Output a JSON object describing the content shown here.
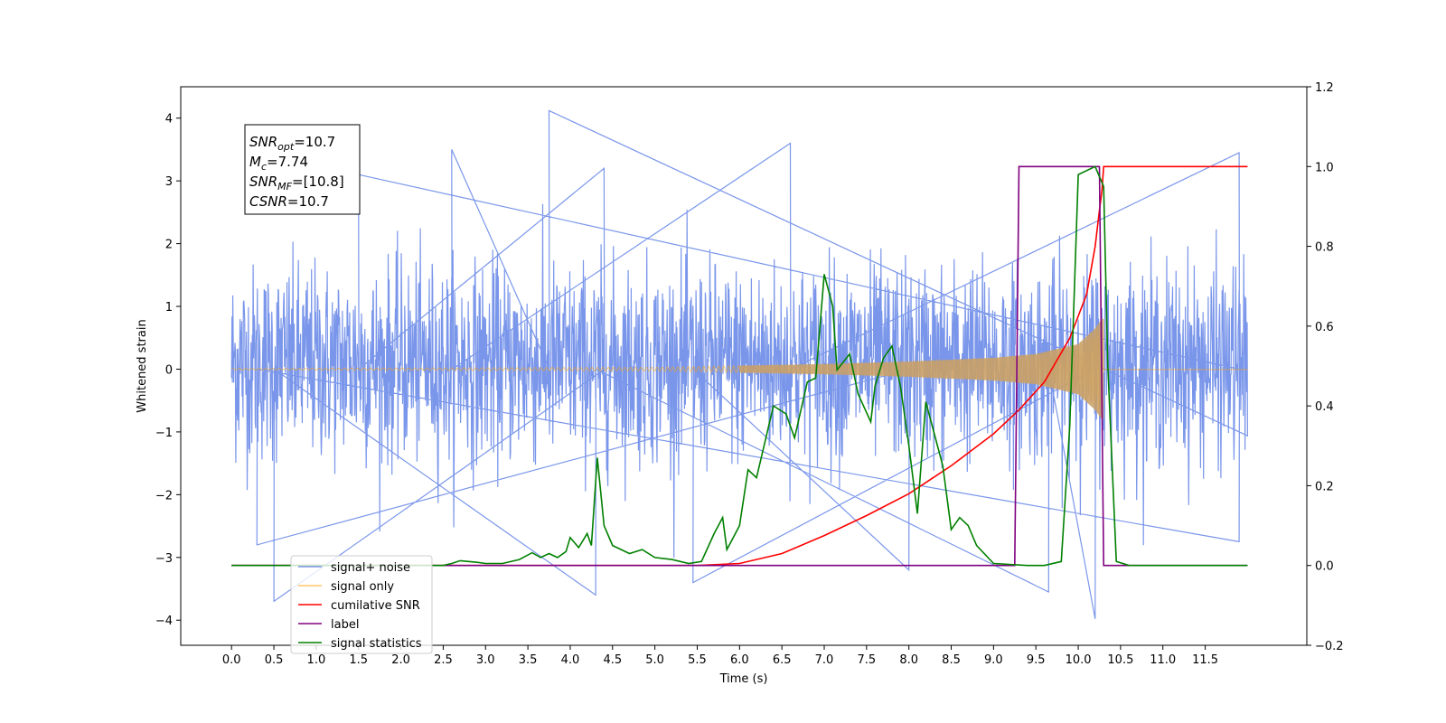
{
  "chart_data": {
    "type": "line",
    "xlabel": "Time (s)",
    "ylabel": "Whitened strain",
    "xlim": [
      -0.6,
      12.7
    ],
    "ylim": [
      -4.4,
      4.5
    ],
    "ylim_right": [
      -0.2,
      1.2
    ],
    "x_ticks": [
      0.0,
      0.5,
      1.0,
      1.5,
      2.0,
      2.5,
      3.0,
      3.5,
      4.0,
      4.5,
      5.0,
      5.5,
      6.0,
      6.5,
      7.0,
      7.5,
      8.0,
      8.5,
      9.0,
      9.5,
      10.0,
      10.5,
      11.0,
      11.5
    ],
    "x_tick_labels": [
      "0.0",
      "0.5",
      "1.0",
      "1.5",
      "2.0",
      "2.5",
      "3.0",
      "3.5",
      "4.0",
      "4.5",
      "5.0",
      "5.5",
      "6.0",
      "6.5",
      "7.0",
      "7.5",
      "8.0",
      "8.5",
      "9.0",
      "9.5",
      "10.0",
      "10.5",
      "11.0",
      "11.5"
    ],
    "y_ticks": [
      -4,
      -3,
      -2,
      -1,
      0,
      1,
      2,
      3,
      4
    ],
    "y_tick_labels": [
      "−4",
      "−3",
      "−2",
      "−1",
      "0",
      "1",
      "2",
      "3",
      "4"
    ],
    "y_ticks_right": [
      -0.2,
      0.0,
      0.2,
      0.4,
      0.6,
      0.8,
      1.0,
      1.2
    ],
    "y_tick_labels_right": [
      "−0.2",
      "0.0",
      "0.2",
      "0.4",
      "0.6",
      "0.8",
      "1.0",
      "1.2"
    ],
    "grid": false,
    "legend_position": "lower-left",
    "annotation": {
      "lines": [
        {
          "base": "SNR",
          "sub": "opt",
          "value": "=10.7"
        },
        {
          "base": "M",
          "sub": "c",
          "value": "=7.74"
        },
        {
          "base": "SNR",
          "sub": "MF",
          "value": "=[10.8]"
        },
        {
          "base": "CSNR",
          "sub": "",
          "value": "=10.7"
        }
      ]
    },
    "series": [
      {
        "name": "signal+ noise",
        "axis": "left",
        "color": "#4169e1",
        "kind": "noise",
        "x_range": [
          0.0,
          12.0
        ],
        "typical_range": [
          -1.6,
          1.8
        ],
        "peaks": [
          {
            "x": 3.75,
            "y": 4.12
          },
          {
            "x": 2.6,
            "y": 3.5
          },
          {
            "x": 6.6,
            "y": 3.6
          },
          {
            "x": 11.9,
            "y": 3.45
          },
          {
            "x": 1.5,
            "y": 3.1
          },
          {
            "x": 4.4,
            "y": 3.2
          },
          {
            "x": 0.5,
            "y": -3.7
          },
          {
            "x": 4.3,
            "y": -3.6
          },
          {
            "x": 9.65,
            "y": -3.55
          },
          {
            "x": 10.2,
            "y": -3.98
          },
          {
            "x": 5.45,
            "y": -3.4
          },
          {
            "x": 8.0,
            "y": -3.2
          },
          {
            "x": 0.3,
            "y": -2.8
          },
          {
            "x": 11.9,
            "y": -2.75
          }
        ]
      },
      {
        "name": "signal only",
        "axis": "left",
        "color": "#ffa500",
        "kind": "chirp",
        "x_range": [
          0.0,
          12.0
        ],
        "merger_time": 10.3,
        "envelope": [
          [
            0.0,
            0.01
          ],
          [
            5.0,
            0.03
          ],
          [
            7.0,
            0.08
          ],
          [
            8.0,
            0.12
          ],
          [
            9.0,
            0.18
          ],
          [
            9.5,
            0.24
          ],
          [
            10.0,
            0.4
          ],
          [
            10.2,
            0.65
          ],
          [
            10.28,
            0.8
          ]
        ]
      },
      {
        "name": "cumilative SNR",
        "axis": "right",
        "color": "#ff0000",
        "points": [
          [
            0.0,
            0.0
          ],
          [
            5.5,
            0.0
          ],
          [
            6.0,
            0.005
          ],
          [
            6.5,
            0.03
          ],
          [
            7.0,
            0.075
          ],
          [
            7.5,
            0.125
          ],
          [
            8.0,
            0.18
          ],
          [
            8.5,
            0.25
          ],
          [
            9.0,
            0.33
          ],
          [
            9.3,
            0.39
          ],
          [
            9.6,
            0.46
          ],
          [
            9.9,
            0.57
          ],
          [
            10.1,
            0.68
          ],
          [
            10.2,
            0.8
          ],
          [
            10.25,
            0.89
          ],
          [
            10.28,
            0.94
          ],
          [
            10.3,
            1.0
          ],
          [
            12.0,
            1.0
          ]
        ]
      },
      {
        "name": "label",
        "axis": "right",
        "color": "#800080",
        "points": [
          [
            0.0,
            0.0
          ],
          [
            9.25,
            0.0
          ],
          [
            9.3,
            1.0
          ],
          [
            10.25,
            1.0
          ],
          [
            10.3,
            0.0
          ],
          [
            12.0,
            0.0
          ]
        ]
      },
      {
        "name": "signal statistics",
        "axis": "right",
        "color": "#008000",
        "points": [
          [
            0.0,
            0.0
          ],
          [
            2.3,
            0.0
          ],
          [
            2.5,
            0.0
          ],
          [
            2.6,
            0.005
          ],
          [
            2.7,
            0.012
          ],
          [
            2.8,
            0.01
          ],
          [
            2.9,
            0.008
          ],
          [
            3.0,
            0.005
          ],
          [
            3.2,
            0.005
          ],
          [
            3.4,
            0.015
          ],
          [
            3.55,
            0.032
          ],
          [
            3.65,
            0.02
          ],
          [
            3.75,
            0.03
          ],
          [
            3.85,
            0.02
          ],
          [
            3.95,
            0.035
          ],
          [
            4.0,
            0.07
          ],
          [
            4.1,
            0.045
          ],
          [
            4.2,
            0.08
          ],
          [
            4.25,
            0.05
          ],
          [
            4.32,
            0.27
          ],
          [
            4.4,
            0.1
          ],
          [
            4.5,
            0.05
          ],
          [
            4.7,
            0.03
          ],
          [
            4.85,
            0.04
          ],
          [
            5.0,
            0.02
          ],
          [
            5.2,
            0.015
          ],
          [
            5.4,
            0.005
          ],
          [
            5.55,
            0.01
          ],
          [
            5.7,
            0.08
          ],
          [
            5.8,
            0.12
          ],
          [
            5.85,
            0.04
          ],
          [
            6.0,
            0.1
          ],
          [
            6.1,
            0.24
          ],
          [
            6.2,
            0.22
          ],
          [
            6.4,
            0.4
          ],
          [
            6.55,
            0.38
          ],
          [
            6.65,
            0.32
          ],
          [
            6.8,
            0.46
          ],
          [
            6.9,
            0.47
          ],
          [
            7.0,
            0.73
          ],
          [
            7.1,
            0.65
          ],
          [
            7.15,
            0.49
          ],
          [
            7.3,
            0.53
          ],
          [
            7.4,
            0.43
          ],
          [
            7.55,
            0.36
          ],
          [
            7.6,
            0.45
          ],
          [
            7.7,
            0.52
          ],
          [
            7.8,
            0.55
          ],
          [
            7.9,
            0.45
          ],
          [
            8.0,
            0.3
          ],
          [
            8.1,
            0.13
          ],
          [
            8.2,
            0.41
          ],
          [
            8.3,
            0.33
          ],
          [
            8.4,
            0.25
          ],
          [
            8.5,
            0.09
          ],
          [
            8.6,
            0.12
          ],
          [
            8.7,
            0.1
          ],
          [
            8.8,
            0.05
          ],
          [
            9.0,
            0.005
          ],
          [
            9.4,
            0.0
          ],
          [
            9.6,
            0.0
          ],
          [
            9.8,
            0.01
          ],
          [
            9.9,
            0.35
          ],
          [
            10.0,
            0.98
          ],
          [
            10.2,
            1.0
          ],
          [
            10.3,
            0.95
          ],
          [
            10.35,
            0.5
          ],
          [
            10.45,
            0.01
          ],
          [
            10.6,
            0.0
          ],
          [
            12.0,
            0.0
          ]
        ]
      }
    ]
  }
}
